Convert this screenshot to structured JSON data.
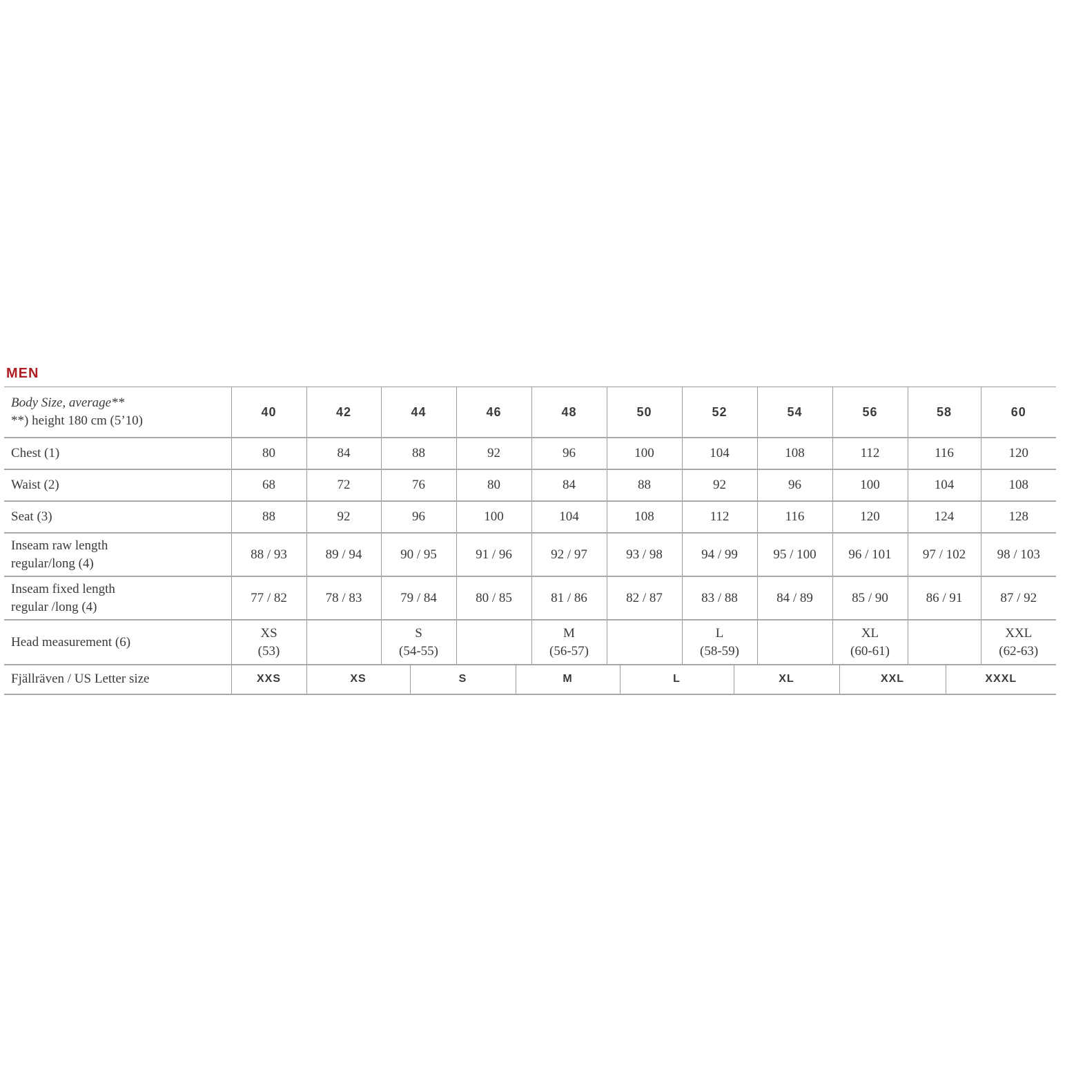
{
  "section_title": "MEN",
  "header": {
    "label_line1": "Body Size, average**",
    "label_line2": "**) height 180 cm (5’10)",
    "sizes": [
      "40",
      "42",
      "44",
      "46",
      "48",
      "50",
      "52",
      "54",
      "56",
      "58",
      "60"
    ]
  },
  "rows": [
    {
      "label": "Chest (1)",
      "values": [
        "80",
        "84",
        "88",
        "92",
        "96",
        "100",
        "104",
        "108",
        "112",
        "116",
        "120"
      ]
    },
    {
      "label": "Waist (2)",
      "values": [
        "68",
        "72",
        "76",
        "80",
        "84",
        "88",
        "92",
        "96",
        "100",
        "104",
        "108"
      ]
    },
    {
      "label": "Seat (3)",
      "values": [
        "88",
        "92",
        "96",
        "100",
        "104",
        "108",
        "112",
        "116",
        "120",
        "124",
        "128"
      ]
    },
    {
      "label_line1": "Inseam raw length",
      "label_line2": "regular/long (4)",
      "values": [
        "88 / 93",
        "89 / 94",
        "90 / 95",
        "91 / 96",
        "92 / 97",
        "93 / 98",
        "94 / 99",
        "95 / 100",
        "96 / 101",
        "97 / 102",
        "98 / 103"
      ]
    },
    {
      "label_line1": "Inseam fixed length",
      "label_line2": "regular /long (4)",
      "values": [
        "77 / 82",
        "78 / 83",
        "79 / 84",
        "80 / 85",
        "81 / 86",
        "82 / 87",
        "83 / 88",
        "84 / 89",
        "85 / 90",
        "86 / 91",
        "87 / 92"
      ]
    }
  ],
  "head": {
    "label": "Head measurement (6)",
    "values": [
      {
        "size": "XS",
        "range": "(53)"
      },
      {
        "size": "",
        "range": ""
      },
      {
        "size": "S",
        "range": "(54-55)"
      },
      {
        "size": "",
        "range": ""
      },
      {
        "size": "M",
        "range": "(56-57)"
      },
      {
        "size": "",
        "range": ""
      },
      {
        "size": "L",
        "range": "(58-59)"
      },
      {
        "size": "",
        "range": ""
      },
      {
        "size": "XL",
        "range": "(60-61)"
      },
      {
        "size": "",
        "range": ""
      },
      {
        "size": "XXL",
        "range": "(62-63)"
      }
    ]
  },
  "letter": {
    "label": "Fjällräven / US Letter size",
    "values": [
      "XXS",
      "XS",
      "S",
      "M",
      "L",
      "XL",
      "XXL",
      "XXXL"
    ]
  },
  "colors": {
    "title": "#b01e24",
    "text": "#3a3a3a",
    "lines": "#999999"
  }
}
